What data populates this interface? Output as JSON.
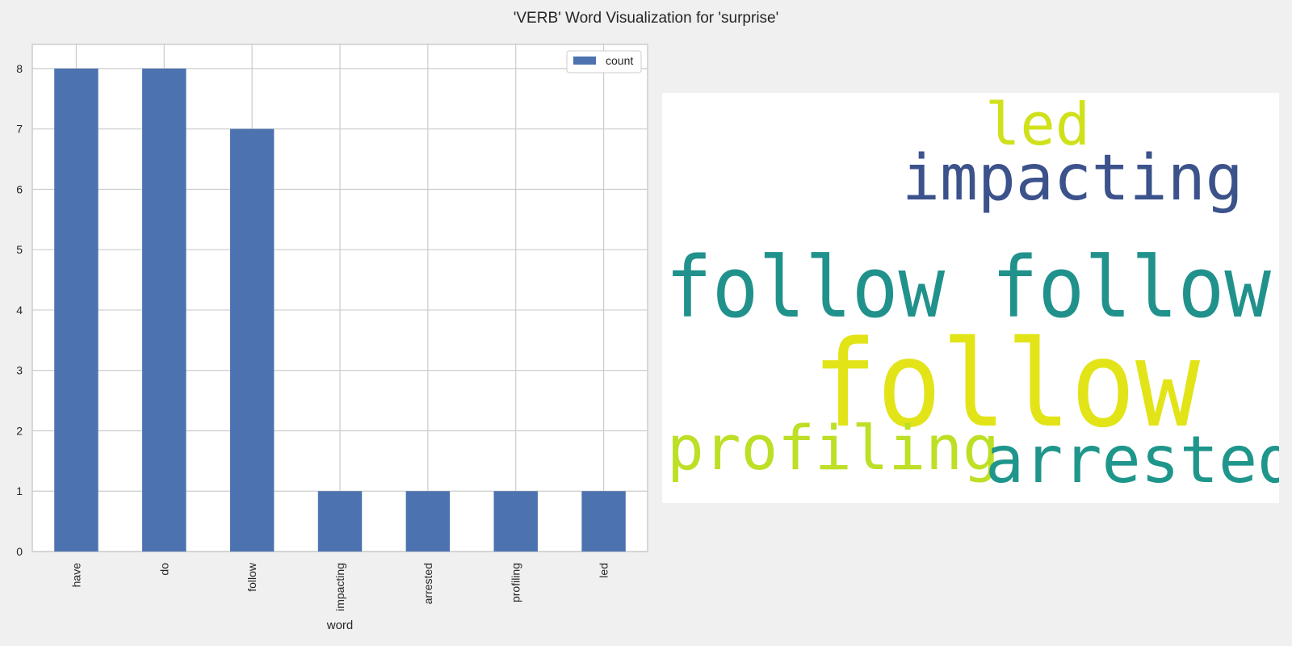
{
  "title": "'VERB' Word Visualization for 'surprise'",
  "chart_data": {
    "type": "bar",
    "categories": [
      "have",
      "do",
      "follow",
      "impacting",
      "arrested",
      "profiling",
      "led"
    ],
    "series": [
      {
        "name": "count",
        "values": [
          8,
          8,
          7,
          1,
          1,
          1,
          1
        ]
      }
    ],
    "xlabel": "word",
    "ylabel": "",
    "ylim": [
      0,
      8.4
    ],
    "yticks": [
      0,
      1,
      2,
      3,
      4,
      5,
      6,
      7,
      8
    ],
    "grid": true,
    "legend": "top-right",
    "bar_color": "#4c72b0"
  },
  "wordcloud": {
    "words": [
      {
        "text": "led",
        "color": "#d0e11c"
      },
      {
        "text": "impacting",
        "color": "#3b528b"
      },
      {
        "text": "follow follow",
        "color": "#21918c"
      },
      {
        "text": "follow",
        "color": "#e2e418"
      },
      {
        "text": "profiling",
        "color": "#bddf26"
      },
      {
        "text": "arrested",
        "color": "#1f968b"
      }
    ]
  }
}
